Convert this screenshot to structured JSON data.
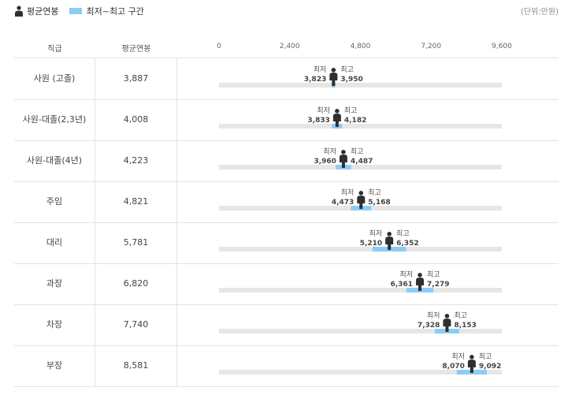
{
  "legend": {
    "avg_label": "평균연봉",
    "range_label": "최저~최고 구간"
  },
  "unit_label": "(단위:만원)",
  "header": {
    "col1": "직급",
    "col2": "평균연봉"
  },
  "point_labels": {
    "min": "최저",
    "max": "최고"
  },
  "colors": {
    "range_bar": "#8dccf6",
    "track": "#e6e6e6",
    "person": "#2f2f2f",
    "grid": "#e3e3e3"
  },
  "chart_data": {
    "type": "bar",
    "xlim": [
      0,
      9600
    ],
    "ticks": [
      "0",
      "2,400",
      "4,800",
      "7,200",
      "9,600"
    ],
    "tick_values": [
      0,
      2400,
      4800,
      7200,
      9600
    ],
    "grid": false,
    "legend": "top-left",
    "rows": [
      {
        "rank": "사원 (고졸)",
        "avg": 3887,
        "avg_label": "3,887",
        "min": 3823,
        "min_label": "3,823",
        "max": 3950,
        "max_label": "3,950"
      },
      {
        "rank": "사원-대졸(2,3년)",
        "avg": 4008,
        "avg_label": "4,008",
        "min": 3833,
        "min_label": "3,833",
        "max": 4182,
        "max_label": "4,182"
      },
      {
        "rank": "사원-대졸(4년)",
        "avg": 4223,
        "avg_label": "4,223",
        "min": 3960,
        "min_label": "3,960",
        "max": 4487,
        "max_label": "4,487"
      },
      {
        "rank": "주임",
        "avg": 4821,
        "avg_label": "4,821",
        "min": 4473,
        "min_label": "4,473",
        "max": 5168,
        "max_label": "5,168"
      },
      {
        "rank": "대리",
        "avg": 5781,
        "avg_label": "5,781",
        "min": 5210,
        "min_label": "5,210",
        "max": 6352,
        "max_label": "6,352"
      },
      {
        "rank": "과장",
        "avg": 6820,
        "avg_label": "6,820",
        "min": 6361,
        "min_label": "6,361",
        "max": 7279,
        "max_label": "7,279"
      },
      {
        "rank": "차장",
        "avg": 7740,
        "avg_label": "7,740",
        "min": 7328,
        "min_label": "7,328",
        "max": 8153,
        "max_label": "8,153"
      },
      {
        "rank": "부장",
        "avg": 8581,
        "avg_label": "8,581",
        "min": 8070,
        "min_label": "8,070",
        "max": 9092,
        "max_label": "9,092"
      }
    ]
  }
}
